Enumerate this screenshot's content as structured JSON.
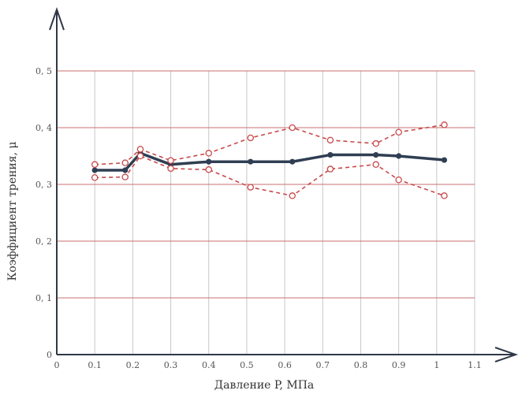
{
  "chart_data": {
    "type": "line",
    "xlabel": "Давление P, МПа",
    "ylabel": "Коэффициент трения, μ",
    "xlim": [
      0,
      1.1
    ],
    "ylim": [
      0,
      0.5
    ],
    "x_ticks": [
      0,
      0.1,
      0.2,
      0.3,
      0.4,
      0.5,
      0.6,
      0.7,
      0.8,
      0.9,
      1,
      1.1
    ],
    "x_tick_labels": [
      "0",
      "0.1",
      "0.2",
      "0.3",
      "0.4",
      "0.5",
      "0.6",
      "0.7",
      "0.8",
      "0.9",
      "1",
      "1.1"
    ],
    "y_ticks": [
      0,
      0.1,
      0.2,
      0.3,
      0.4,
      0.5
    ],
    "y_tick_labels": [
      "0",
      "0, 1",
      "0, 2",
      "0, 3",
      "0, 4",
      "0, 5"
    ],
    "grid": true,
    "colors": {
      "grid_vertical": "#c8c8c8",
      "grid_horizontal": "#c96f70",
      "axis": "#303848",
      "mean_line": "#2f3e52",
      "bound_lines": "#c8494a"
    },
    "series": [
      {
        "style": "solid",
        "marker": "filled-circle",
        "points": [
          {
            "x": 0.1,
            "y": 0.325
          },
          {
            "x": 0.18,
            "y": 0.325
          },
          {
            "x": 0.22,
            "y": 0.355
          },
          {
            "x": 0.3,
            "y": 0.335
          },
          {
            "x": 0.4,
            "y": 0.34
          },
          {
            "x": 0.51,
            "y": 0.34
          },
          {
            "x": 0.62,
            "y": 0.34
          },
          {
            "x": 0.72,
            "y": 0.352
          },
          {
            "x": 0.84,
            "y": 0.352
          },
          {
            "x": 0.9,
            "y": 0.35
          },
          {
            "x": 1.02,
            "y": 0.343
          }
        ]
      },
      {
        "style": "dashed",
        "marker": "open-circle",
        "points": [
          {
            "x": 0.1,
            "y": 0.335
          },
          {
            "x": 0.18,
            "y": 0.338
          },
          {
            "x": 0.22,
            "y": 0.362
          },
          {
            "x": 0.3,
            "y": 0.342
          },
          {
            "x": 0.4,
            "y": 0.355
          },
          {
            "x": 0.51,
            "y": 0.382
          },
          {
            "x": 0.62,
            "y": 0.4
          },
          {
            "x": 0.72,
            "y": 0.378
          },
          {
            "x": 0.84,
            "y": 0.372
          },
          {
            "x": 0.9,
            "y": 0.392
          },
          {
            "x": 1.02,
            "y": 0.405
          }
        ]
      },
      {
        "style": "dashed",
        "marker": "open-circle",
        "points": [
          {
            "x": 0.1,
            "y": 0.312
          },
          {
            "x": 0.18,
            "y": 0.313
          },
          {
            "x": 0.22,
            "y": 0.35
          },
          {
            "x": 0.3,
            "y": 0.328
          },
          {
            "x": 0.4,
            "y": 0.326
          },
          {
            "x": 0.51,
            "y": 0.295
          },
          {
            "x": 0.62,
            "y": 0.28
          },
          {
            "x": 0.72,
            "y": 0.327
          },
          {
            "x": 0.84,
            "y": 0.335
          },
          {
            "x": 0.9,
            "y": 0.308
          },
          {
            "x": 1.02,
            "y": 0.28
          }
        ]
      }
    ]
  }
}
